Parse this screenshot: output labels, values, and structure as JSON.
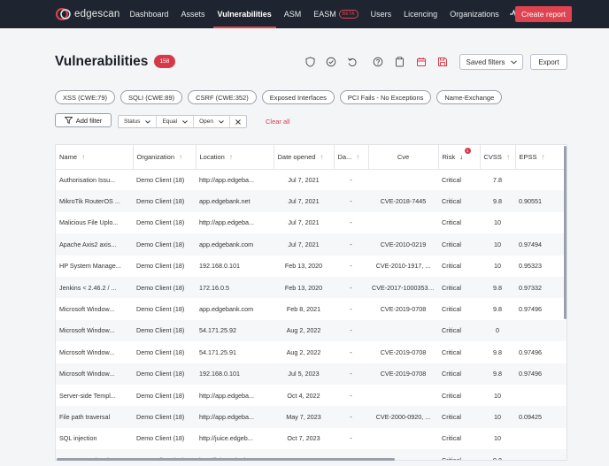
{
  "brand": {
    "name": "edgescan"
  },
  "nav": {
    "items": [
      {
        "label": "Dashboard",
        "active": false
      },
      {
        "label": "Assets",
        "active": false
      },
      {
        "label": "Vulnerabilities",
        "active": true
      },
      {
        "label": "ASM",
        "active": false
      },
      {
        "label": "EASM",
        "active": false,
        "badge": "BETA"
      },
      {
        "label": "Users",
        "active": false
      },
      {
        "label": "Licencing",
        "active": false
      },
      {
        "label": "Organizations",
        "active": false
      }
    ],
    "icons": [
      "activity-icon",
      "user-icon"
    ],
    "create_report": "Create report"
  },
  "header": {
    "title": "Vulnerabilities",
    "count": "158",
    "icons": [
      "shield-icon",
      "check-circle-icon",
      "undo-icon",
      "help-icon",
      "clipboard-icon",
      "calendar-icon",
      "save-icon"
    ],
    "saved_filters": "Saved filters",
    "export": "Export"
  },
  "chips": [
    "XSS (CWE:79)",
    "SQLI (CWE:89)",
    "CSRF (CWE:352)",
    "Exposed Interfaces",
    "PCI Fails - No Exceptions",
    "Name-Exchange"
  ],
  "filters": {
    "add_filter": "Add filter",
    "status": "Status",
    "operator": "Equal",
    "value": "Open",
    "clear_all": "Clear all",
    "risk_sort_count": "1"
  },
  "table": {
    "columns": [
      "Name",
      "Organization",
      "Location",
      "Date opened",
      "Da...",
      "Cve",
      "Risk",
      "CVSS",
      "EPSS"
    ],
    "rows": [
      [
        "Authorisation Issu...",
        "Demo Client (18)",
        "http://app.edgeba...",
        "Jul 7, 2021",
        "-",
        "",
        "Critical",
        "7.8",
        ""
      ],
      [
        "MikroTik RouterOS ...",
        "Demo Client (18)",
        "app.edgebank.net",
        "Jul 7, 2021",
        "-",
        "CVE-2018-7445",
        "Critical",
        "9.8",
        "0.90551"
      ],
      [
        "Malicious File Uplo...",
        "Demo Client (18)",
        "http://app.edgeba...",
        "Jul 7, 2021",
        "-",
        "",
        "Critical",
        "10",
        ""
      ],
      [
        "Apache Axis2 axis...",
        "Demo Client (18)",
        "app.edgebank.com",
        "Jul 7, 2021",
        "-",
        "CVE-2010-0219",
        "Critical",
        "10",
        "0.97494"
      ],
      [
        "HP System Manage...",
        "Demo Client (18)",
        "192.168.0.101",
        "Feb 13, 2020",
        "-",
        "CVE-2010-1917, ...",
        "Critical",
        "10",
        "0.95323"
      ],
      [
        "Jenkins < 2.46.2 / ...",
        "Demo Client (18)",
        "172.16.0.5",
        "Feb 13, 2020",
        "-",
        "CVE-2017-1000353, ...",
        "Critical",
        "9.8",
        "0.97332"
      ],
      [
        "Microsoft Window...",
        "Demo Client (18)",
        "app.edgebank.com",
        "Feb 8, 2021",
        "-",
        "CVE-2019-0708",
        "Critical",
        "9.8",
        "0.97496"
      ],
      [
        "Microsoft Window...",
        "Demo Client (18)",
        "54.171.25.92",
        "Aug 2, 2022",
        "-",
        "",
        "Critical",
        "0",
        ""
      ],
      [
        "Microsoft Window...",
        "Demo Client (18)",
        "54.171.25.91",
        "Aug 2, 2022",
        "-",
        "CVE-2019-0708",
        "Critical",
        "9.8",
        "0.97496"
      ],
      [
        "Microsoft Window...",
        "Demo Client (18)",
        "192.168.0.101",
        "Jul 5, 2023",
        "-",
        "CVE-2019-0708",
        "Critical",
        "9.8",
        "0.97496"
      ],
      [
        "Server-side Templ...",
        "Demo Client (18)",
        "http://app.edgeba...",
        "Oct 4, 2022",
        "-",
        "",
        "Critical",
        "10",
        ""
      ],
      [
        "File path traversal",
        "Demo Client (18)",
        "http://app.edgeba...",
        "May 7, 2023",
        "-",
        "CVE-2000-0920, ...",
        "Critical",
        "10",
        "0.09425"
      ],
      [
        "SQL injection",
        "Demo Client (18)",
        "http://juice.edgeb...",
        "Oct 7, 2023",
        "-",
        "",
        "Critical",
        "10",
        ""
      ],
      [
        "XML external entit...",
        "Demo Client (18)",
        "http://juice.edgeb...",
        "Oct 7, 2023",
        "-",
        "",
        "Critical",
        "9.8",
        ""
      ]
    ]
  }
}
